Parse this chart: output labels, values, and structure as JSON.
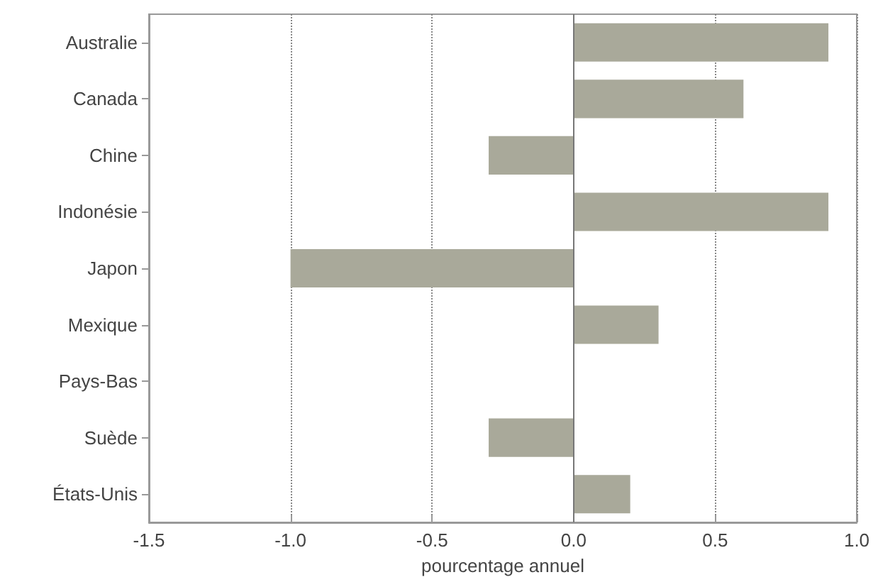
{
  "chart_data": {
    "type": "bar",
    "orientation": "horizontal",
    "xlabel": "pourcentage annuel",
    "categories": [
      "Australie",
      "Canada",
      "Chine",
      "Indonésie",
      "Japon",
      "Mexique",
      "Pays-Bas",
      "Suède",
      "États-Unis"
    ],
    "values": [
      0.9,
      0.6,
      -0.3,
      0.9,
      -1.0,
      0.3,
      0,
      -0.3,
      0.2
    ],
    "color": "#a9a99a",
    "xlim": [
      -1.5,
      1.0
    ],
    "xticks": [
      -1.5,
      {
        "value": -1,
        "label": "-1.0"
      },
      -0.5,
      {
        "value": 0,
        "label": "0.0"
      },
      0.5,
      {
        "value": 1,
        "label": "1.0"
      }
    ],
    "grid": "x"
  }
}
